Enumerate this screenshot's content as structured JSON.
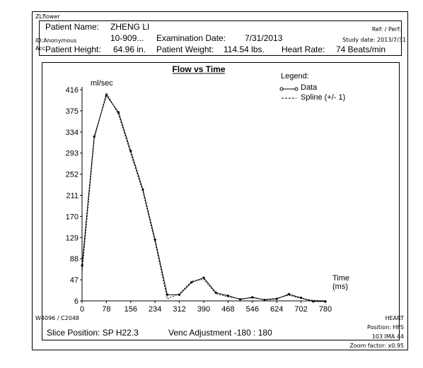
{
  "overlay": {
    "name_top": "ZLflower",
    "id": "ID:Anonymous",
    "acc": "Acc:",
    "ref": "Ref: / Perf:",
    "study_date": "Study date: 2013/7/31",
    "bottom_left": "W4096 / C2048",
    "bottom_right_1": "HEART",
    "bottom_right_2": "Position: HFS",
    "bottom_right_3": "103 IMA 44",
    "bottom_right_4": "Zoom factor: x0.95"
  },
  "patient": {
    "name_label": "Patient Name:",
    "name_value": "ZHENG LI",
    "id_value": "10-909...",
    "exam_date_label": "Examination Date:",
    "exam_date_value": "7/31/2013",
    "height_label": "Patient Height:",
    "height_value": "64.96 in.",
    "weight_label": "Patient Weight:",
    "weight_value": "114.54 lbs.",
    "hr_label": "Heart Rate:",
    "hr_value": "74 Beats/min"
  },
  "footer": {
    "slice_position": "Slice Position: SP  H22.3",
    "venc": "Venc Adjustment -180 : 180"
  },
  "chart_data": {
    "type": "line",
    "title": "Flow vs Time",
    "ylabel": "ml/sec",
    "xlabel": "Time",
    "xunit": "(ms)",
    "legend_title": "Legend:",
    "legend": [
      "Data",
      "Spline (+/- 1)"
    ],
    "legend_placement": "top-right",
    "grid": false,
    "xlim": [
      0,
      780
    ],
    "ylim": [
      6,
      416
    ],
    "xticks": [
      "0",
      "78",
      "156",
      "234",
      "312",
      "390",
      "468",
      "546",
      "624",
      "702",
      "780"
    ],
    "yticks": [
      "416",
      "375",
      "334",
      "293",
      "252",
      "211",
      "170",
      "129",
      "88",
      "47",
      "6"
    ],
    "series": [
      {
        "name": "Data",
        "x": [
          0,
          39,
          78,
          117,
          156,
          195,
          234,
          273,
          312,
          351,
          390,
          429,
          468,
          507,
          546,
          585,
          624,
          663,
          702,
          741,
          780
        ],
        "values": [
          75,
          325,
          405,
          372,
          297,
          222,
          125,
          18,
          18,
          42,
          51,
          22,
          16,
          9,
          13,
          8,
          10,
          19,
          12,
          5,
          5
        ]
      },
      {
        "name": "Spline (+/- 1)",
        "x": [
          0,
          39,
          78,
          117,
          156,
          195,
          234,
          273,
          312,
          351,
          390,
          429,
          468,
          507,
          546,
          585,
          624,
          663,
          702,
          741,
          780
        ],
        "values": [
          60,
          320,
          410,
          368,
          292,
          218,
          120,
          10,
          20,
          44,
          48,
          20,
          14,
          10,
          12,
          9,
          11,
          17,
          11,
          7,
          6
        ]
      }
    ]
  }
}
